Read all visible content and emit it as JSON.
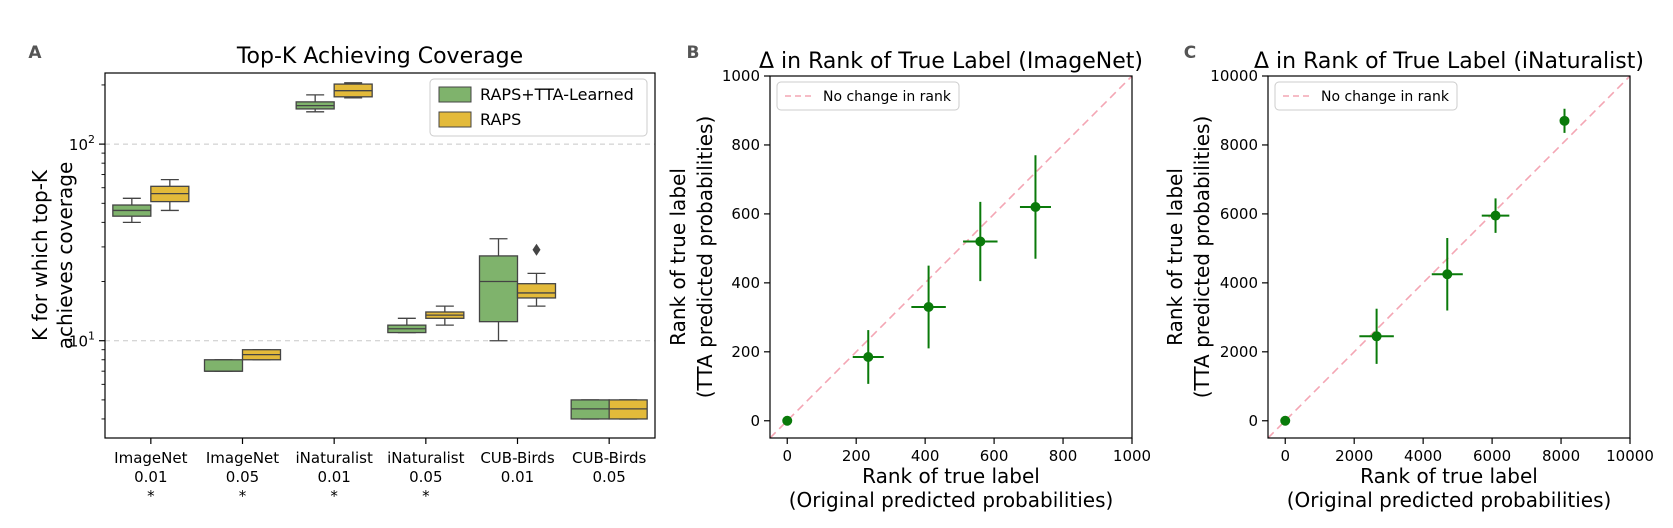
{
  "chart_data": [
    {
      "panel": "A",
      "type": "box",
      "title": "Top-K Achieving Coverage",
      "ylabel": "K for which top-K\nachieves coverage",
      "xlabel": "",
      "yscale": "log",
      "ylim": [
        3.2,
        230
      ],
      "yticks": [
        {
          "value": 10,
          "label": "10^1"
        },
        {
          "value": 100,
          "label": "10^2"
        }
      ],
      "grid": "horizontal dashed at major ticks",
      "legend_position": "top-right",
      "colors": {
        "RAPS+TTA-Learned": "#7fb36c",
        "RAPS": "#e3ba3a"
      },
      "categories": [
        {
          "dataset": "ImageNet",
          "alpha": "0.01",
          "marker": "*"
        },
        {
          "dataset": "ImageNet",
          "alpha": "0.05",
          "marker": "*"
        },
        {
          "dataset": "iNaturalist",
          "alpha": "0.01",
          "marker": "*"
        },
        {
          "dataset": "iNaturalist",
          "alpha": "0.05",
          "marker": "*"
        },
        {
          "dataset": "CUB-Birds",
          "alpha": "0.01",
          "marker": ""
        },
        {
          "dataset": "CUB-Birds",
          "alpha": "0.05",
          "marker": ""
        }
      ],
      "series": [
        {
          "name": "RAPS+TTA-Learned",
          "boxes": [
            {
              "whislo": 40,
              "q1": 43,
              "med": 46,
              "q3": 49,
              "whishi": 53
            },
            {
              "whislo": 7,
              "q1": 7,
              "med": 7,
              "q3": 8,
              "whishi": 8
            },
            {
              "whislo": 146,
              "q1": 151,
              "med": 157,
              "q3": 164,
              "whishi": 178
            },
            {
              "whislo": 11,
              "q1": 11,
              "med": 11.5,
              "q3": 12,
              "whishi": 13
            },
            {
              "whislo": 10,
              "q1": 12.5,
              "med": 20,
              "q3": 27,
              "whishi": 33
            },
            {
              "whislo": 4,
              "q1": 4,
              "med": 4.5,
              "q3": 5,
              "whishi": 5
            }
          ]
        },
        {
          "name": "RAPS",
          "boxes": [
            {
              "whislo": 46,
              "q1": 51,
              "med": 56,
              "q3": 61,
              "whishi": 66
            },
            {
              "whislo": 8,
              "q1": 8,
              "med": 8.5,
              "q3": 9,
              "whishi": 9
            },
            {
              "whislo": 172,
              "q1": 174,
              "med": 187,
              "q3": 202,
              "whishi": 205
            },
            {
              "whislo": 12,
              "q1": 13,
              "med": 13.5,
              "q3": 14,
              "whishi": 15
            },
            {
              "whislo": 15,
              "q1": 16.5,
              "med": 17.5,
              "q3": 19.5,
              "whishi": 22
            },
            {
              "whislo": 4,
              "q1": 4,
              "med": 4.5,
              "q3": 5,
              "whishi": 5
            }
          ],
          "outliers": [
            {
              "category_index": 4,
              "value": 29
            }
          ]
        }
      ]
    },
    {
      "panel": "B",
      "type": "scatter",
      "title": "Δ in Rank of True Label (ImageNet)",
      "xlabel": "Rank of true label\n(Original predicted probabilities)",
      "ylabel": "Rank of true label\n(TTA predicted probabilities)",
      "xlim": [
        -50,
        1000
      ],
      "ylim": [
        -50,
        1000
      ],
      "xticks": [
        0,
        200,
        400,
        600,
        800,
        1000
      ],
      "yticks": [
        0,
        200,
        400,
        600,
        800,
        1000
      ],
      "legend_position": "top-left",
      "reference_line": {
        "label": "No change in rank",
        "color": "#f4a6b4",
        "style": "dashed"
      },
      "point_color": "#0a7a0a",
      "points": [
        {
          "x": 0,
          "y": 0,
          "xerr": 0,
          "yerr": 0
        },
        {
          "x": 235,
          "y": 185,
          "xerr": 45,
          "yerr": 78
        },
        {
          "x": 410,
          "y": 330,
          "xerr": 50,
          "yerr": 120
        },
        {
          "x": 560,
          "y": 520,
          "xerr": 50,
          "yerr": 115
        },
        {
          "x": 720,
          "y": 620,
          "xerr": 45,
          "yerr": 150
        }
      ]
    },
    {
      "panel": "C",
      "type": "scatter",
      "title": "Δ in Rank of True Label (iNaturalist)",
      "xlabel": "Rank of true label\n(Original predicted probabilities)",
      "ylabel": "Rank of true label\n(TTA predicted probabilities)",
      "xlim": [
        -500,
        10000
      ],
      "ylim": [
        -500,
        10000
      ],
      "xticks": [
        0,
        2000,
        4000,
        6000,
        8000,
        10000
      ],
      "yticks": [
        0,
        2000,
        4000,
        6000,
        8000,
        10000
      ],
      "legend_position": "top-left",
      "reference_line": {
        "label": "No change in rank",
        "color": "#f4a6b4",
        "style": "dashed"
      },
      "point_color": "#0a7a0a",
      "points": [
        {
          "x": 0,
          "y": 0,
          "xerr": 0,
          "yerr": 0
        },
        {
          "x": 2650,
          "y": 2450,
          "xerr": 500,
          "yerr": 800
        },
        {
          "x": 4700,
          "y": 4250,
          "xerr": 450,
          "yerr": 1050
        },
        {
          "x": 6100,
          "y": 5950,
          "xerr": 400,
          "yerr": 500
        },
        {
          "x": 8100,
          "y": 8700,
          "xerr": 100,
          "yerr": 350
        }
      ]
    }
  ]
}
